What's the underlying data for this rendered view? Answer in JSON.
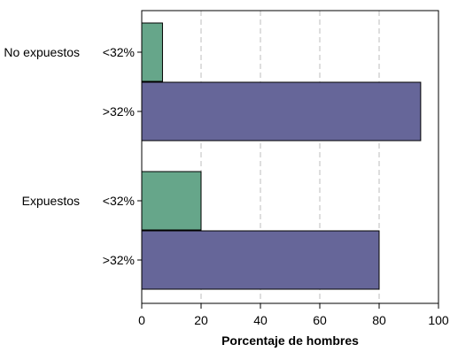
{
  "chart_data": {
    "type": "bar",
    "orientation": "horizontal",
    "title": "",
    "xlabel": "Porcentaje de hombres",
    "ylabel": "",
    "xlim": [
      0,
      100
    ],
    "xticks": [
      0,
      20,
      40,
      60,
      80,
      100
    ],
    "grid": "vertical dashed",
    "legend": "none",
    "groups": [
      {
        "label": "No expuestos",
        "bars": [
          {
            "category": "<32%",
            "value": 7,
            "color": "#66a68a"
          },
          {
            "category": ">32%",
            "value": 94,
            "color": "#666699"
          }
        ]
      },
      {
        "label": "Expuestos",
        "bars": [
          {
            "category": "<32%",
            "value": 20,
            "color": "#66a68a"
          },
          {
            "category": ">32%",
            "value": 80,
            "color": "#666699"
          }
        ]
      }
    ]
  }
}
